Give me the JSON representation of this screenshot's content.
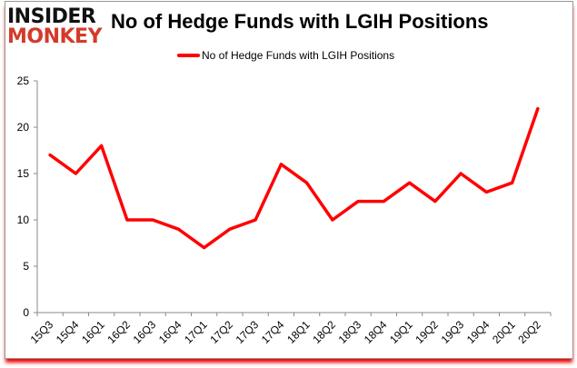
{
  "logo": {
    "line1": "INSIDER",
    "line2": "MONKEY"
  },
  "chart_data": {
    "type": "line",
    "title": "No of Hedge Funds with LGIH Positions",
    "legend": [
      "No of Hedge Funds with LGIH Positions"
    ],
    "legend_position": "top-center",
    "xlabel": "",
    "ylabel": "",
    "categories": [
      "15Q3",
      "15Q4",
      "16Q1",
      "16Q2",
      "16Q3",
      "16Q4",
      "17Q1",
      "17Q2",
      "17Q3",
      "17Q4",
      "18Q1",
      "18Q2",
      "18Q3",
      "18Q4",
      "19Q1",
      "19Q2",
      "19Q3",
      "19Q4",
      "20Q1",
      "20Q2"
    ],
    "series": [
      {
        "name": "No of Hedge Funds with LGIH Positions",
        "color": "#ff0000",
        "values": [
          17,
          15,
          18,
          10,
          10,
          9,
          7,
          9,
          10,
          16,
          14,
          10,
          12,
          12,
          14,
          12,
          15,
          13,
          14,
          22
        ]
      }
    ],
    "ylim": [
      0,
      25
    ],
    "yticks": [
      0,
      5,
      10,
      15,
      20,
      25
    ],
    "grid": false
  }
}
